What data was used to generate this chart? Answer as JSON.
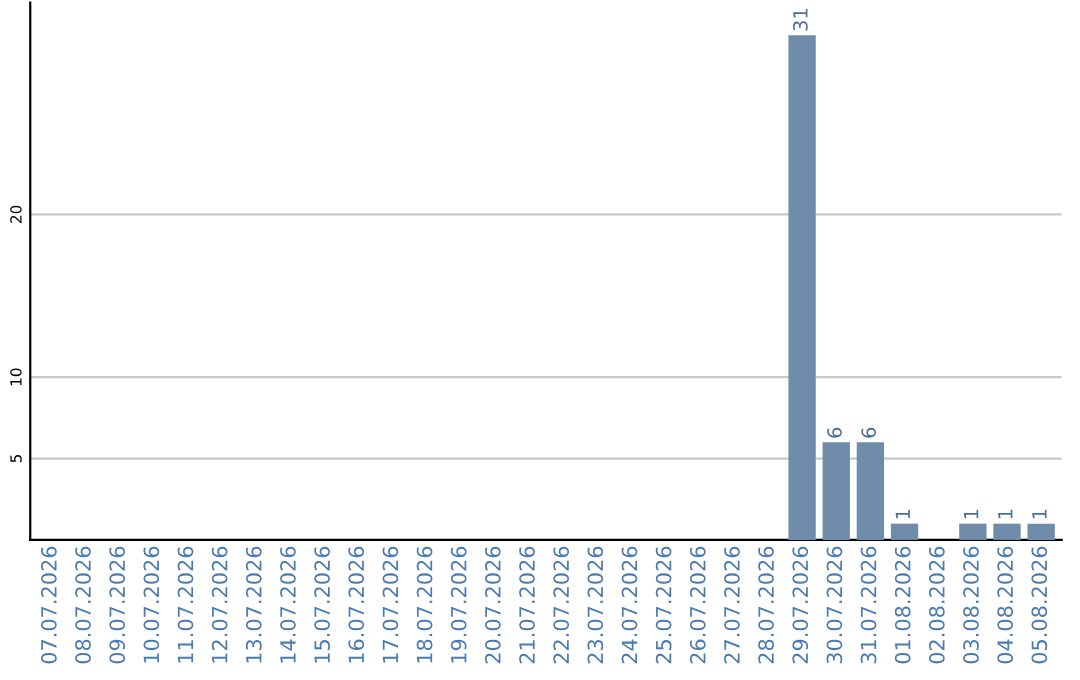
{
  "chart_data": {
    "type": "bar",
    "categories": [
      "07.07.2026",
      "08.07.2026",
      "09.07.2026",
      "10.07.2026",
      "11.07.2026",
      "12.07.2026",
      "13.07.2026",
      "14.07.2026",
      "15.07.2026",
      "16.07.2026",
      "17.07.2026",
      "18.07.2026",
      "19.07.2026",
      "20.07.2026",
      "21.07.2026",
      "22.07.2026",
      "23.07.2026",
      "24.07.2026",
      "25.07.2026",
      "26.07.2026",
      "27.07.2026",
      "28.07.2026",
      "29.07.2026",
      "30.07.2026",
      "31.07.2026",
      "01.08.2026",
      "02.08.2026",
      "03.08.2026",
      "04.08.2026",
      "05.08.2026"
    ],
    "values": [
      0,
      0,
      0,
      0,
      0,
      0,
      0,
      0,
      0,
      0,
      0,
      0,
      0,
      0,
      0,
      0,
      0,
      0,
      0,
      0,
      0,
      0,
      31,
      6,
      6,
      1,
      0,
      1,
      1,
      1
    ],
    "value_labels": [
      null,
      null,
      null,
      null,
      null,
      null,
      null,
      null,
      null,
      null,
      null,
      null,
      null,
      null,
      null,
      null,
      null,
      null,
      null,
      null,
      null,
      null,
      "31",
      "6",
      "6",
      "1",
      null,
      "1",
      "1",
      "1"
    ],
    "color": "#6f8cab",
    "ylim": [
      0,
      33
    ],
    "yticks": [
      5,
      10,
      20
    ],
    "grid": "y"
  }
}
